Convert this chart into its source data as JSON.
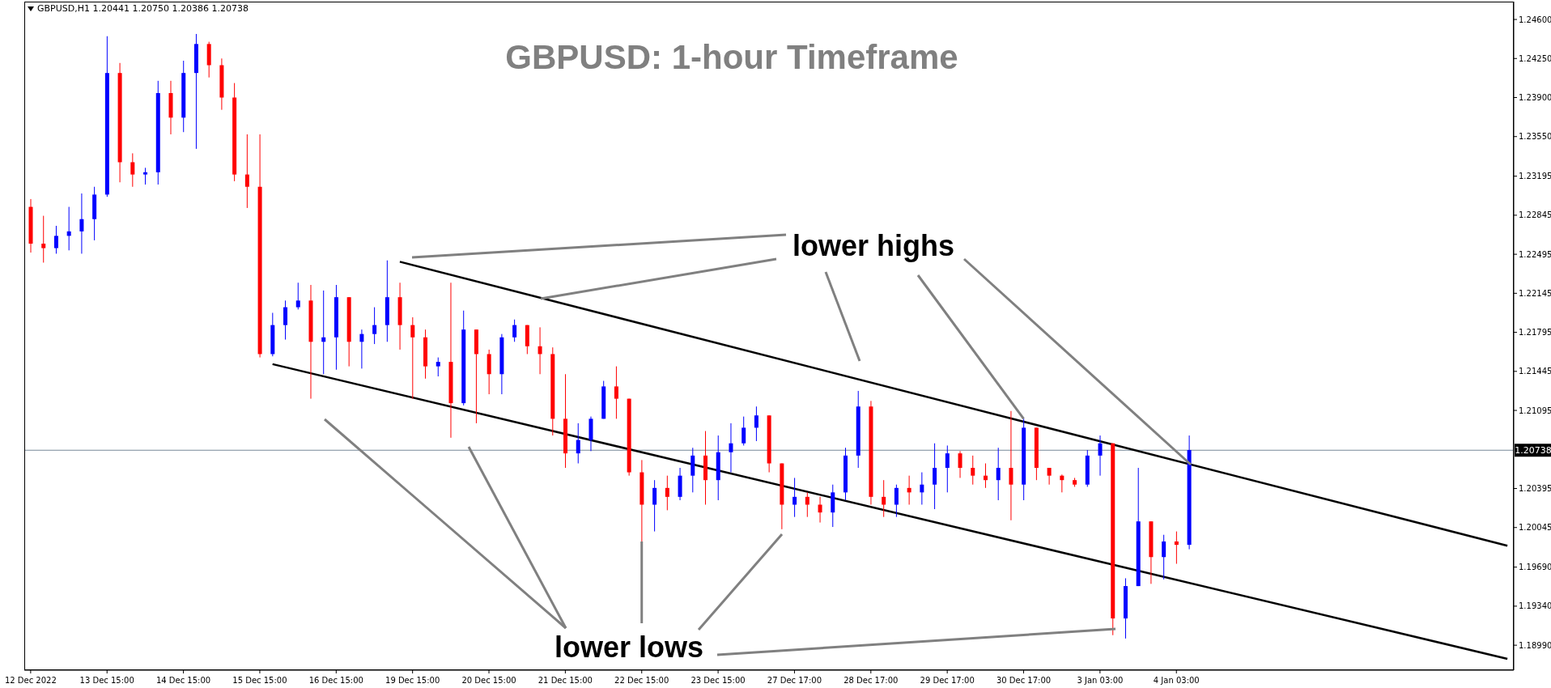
{
  "chart_data": {
    "type": "candlestick",
    "title": "GBPUSD: 1-hour Timeframe",
    "subtitle": "GBPUSD,H1  1.20441 1.20750 1.20386 1.20738",
    "categories": [
      "12 Dec 2022",
      null,
      null,
      null,
      null,
      null,
      "13 Dec 15:00",
      null,
      null,
      null,
      null,
      null,
      "14 Dec 15:00",
      null,
      null,
      null,
      null,
      null,
      "15 Dec 15:00",
      null,
      null,
      null,
      null,
      null,
      "16 Dec 15:00",
      null,
      null,
      null,
      null,
      null,
      "19 Dec 15:00",
      null,
      null,
      null,
      null,
      null,
      "20 Dec 15:00",
      null,
      null,
      null,
      null,
      null,
      "21 Dec 15:00",
      null,
      null,
      null,
      null,
      null,
      "22 Dec 15:00",
      null,
      null,
      null,
      null,
      null,
      "23 Dec 15:00",
      null,
      null,
      null,
      null,
      null,
      "27 Dec 17:00",
      null,
      null,
      null,
      null,
      null,
      "28 Dec 17:00",
      null,
      null,
      null,
      null,
      null,
      "29 Dec 17:00",
      null,
      null,
      null,
      null,
      null,
      "30 Dec 17:00",
      null,
      null,
      null,
      null,
      null,
      "3 Jan 03:00",
      null,
      null,
      null,
      null,
      null,
      "4 Jan 03:00",
      null,
      null,
      null,
      null,
      null,
      null,
      null,
      null,
      null,
      null,
      null,
      null,
      null,
      null,
      null,
      null,
      null,
      null,
      null,
      null,
      null,
      null,
      null,
      null,
      null,
      null
    ],
    "ohlc": [
      [
        1.2292,
        1.2299,
        1.2251,
        1.2259
      ],
      [
        1.2259,
        1.2284,
        1.2242,
        1.2255
      ],
      [
        1.2255,
        1.2275,
        1.225,
        1.2266
      ],
      [
        1.2266,
        1.2292,
        1.2253,
        1.227
      ],
      [
        1.227,
        1.2304,
        1.225,
        1.2281
      ],
      [
        1.2281,
        1.231,
        1.2262,
        1.2303
      ],
      [
        1.2303,
        1.2445,
        1.2301,
        1.2412
      ],
      [
        1.2412,
        1.2421,
        1.2314,
        1.2332
      ],
      [
        1.2332,
        1.234,
        1.231,
        1.2321
      ],
      [
        1.2321,
        1.2327,
        1.2312,
        1.2323
      ],
      [
        1.2323,
        1.2405,
        1.2312,
        1.2394
      ],
      [
        1.2394,
        1.2405,
        1.2357,
        1.2372
      ],
      [
        1.2372,
        1.2423,
        1.2359,
        1.2412
      ],
      [
        1.2412,
        1.2447,
        1.2344,
        1.2438
      ],
      [
        1.2438,
        1.244,
        1.2408,
        1.2419
      ],
      [
        1.2419,
        1.2425,
        1.2379,
        1.239
      ],
      [
        1.239,
        1.2403,
        1.2315,
        1.2321
      ],
      [
        1.2321,
        1.2357,
        1.2291,
        1.231
      ],
      [
        1.231,
        1.2357,
        1.2157,
        1.216
      ],
      [
        1.216,
        1.2197,
        1.2158,
        1.2186
      ],
      [
        1.2186,
        1.2208,
        1.2173,
        1.2202
      ],
      [
        1.2202,
        1.2224,
        1.22,
        1.2208
      ],
      [
        1.2208,
        1.2222,
        1.212,
        1.2171
      ],
      [
        1.2171,
        1.2217,
        1.2142,
        1.2175
      ],
      [
        1.2175,
        1.2222,
        1.2146,
        1.2211
      ],
      [
        1.2211,
        1.2211,
        1.2149,
        1.2171
      ],
      [
        1.2171,
        1.2182,
        1.2147,
        1.2178
      ],
      [
        1.2178,
        1.2202,
        1.2169,
        1.2186
      ],
      [
        1.2186,
        1.2244,
        1.2171,
        1.2211
      ],
      [
        1.2211,
        1.2224,
        1.2164,
        1.2186
      ],
      [
        1.2186,
        1.2193,
        1.212,
        1.2175
      ],
      [
        1.2175,
        1.2182,
        1.2138,
        1.2149
      ],
      [
        1.2149,
        1.2157,
        1.214,
        1.2153
      ],
      [
        1.2153,
        1.2224,
        1.2085,
        1.2116
      ],
      [
        1.2116,
        1.2199,
        1.2114,
        1.2182
      ],
      [
        1.2182,
        1.2182,
        1.2098,
        1.216
      ],
      [
        1.216,
        1.2164,
        1.2124,
        1.2142
      ],
      [
        1.2142,
        1.2178,
        1.2124,
        1.2175
      ],
      [
        1.2175,
        1.2191,
        1.2171,
        1.2186
      ],
      [
        1.2186,
        1.2186,
        1.216,
        1.2167
      ],
      [
        1.2167,
        1.2184,
        1.2142,
        1.216
      ],
      [
        1.216,
        1.2166,
        1.2087,
        1.2102
      ],
      [
        1.2102,
        1.2142,
        1.2058,
        1.2071
      ],
      [
        1.2071,
        1.2098,
        1.2062,
        1.2083
      ],
      [
        1.2083,
        1.2104,
        1.2073,
        1.2102
      ],
      [
        1.2102,
        1.2136,
        1.2102,
        1.2131
      ],
      [
        1.2131,
        1.2149,
        1.2102,
        1.212
      ],
      [
        1.212,
        1.212,
        1.2051,
        1.2054
      ],
      [
        1.2054,
        1.2065,
        1.1992,
        1.2025
      ],
      [
        1.2025,
        1.2047,
        1.2001,
        1.204
      ],
      [
        1.204,
        1.2051,
        1.202,
        1.2032
      ],
      [
        1.2032,
        1.2058,
        1.2029,
        1.2051
      ],
      [
        1.2051,
        1.2076,
        1.2036,
        1.2069
      ],
      [
        1.2069,
        1.2091,
        1.2025,
        1.2047
      ],
      [
        1.2047,
        1.2087,
        1.2029,
        1.2072
      ],
      [
        1.2072,
        1.2098,
        1.2054,
        1.208
      ],
      [
        1.208,
        1.2104,
        1.2078,
        1.2094
      ],
      [
        1.2094,
        1.2113,
        1.2082,
        1.2105
      ],
      [
        1.2105,
        1.2105,
        1.2054,
        1.2062
      ],
      [
        1.2062,
        1.2062,
        1.2003,
        1.2025
      ],
      [
        1.2025,
        1.2049,
        1.2014,
        1.2032
      ],
      [
        1.2032,
        1.2036,
        1.2014,
        1.2025
      ],
      [
        1.2025,
        1.2032,
        1.2009,
        1.2018
      ],
      [
        1.2018,
        1.2043,
        1.2005,
        1.2036
      ],
      [
        1.2036,
        1.2076,
        1.2029,
        1.2069
      ],
      [
        1.2069,
        1.2127,
        1.2058,
        1.2113
      ],
      [
        1.2113,
        1.2118,
        1.2025,
        1.2032
      ],
      [
        1.2032,
        1.2047,
        1.2014,
        1.2025
      ],
      [
        1.2025,
        1.2043,
        1.2014,
        1.204
      ],
      [
        1.204,
        1.2051,
        1.2025,
        1.2036
      ],
      [
        1.2036,
        1.2054,
        1.2025,
        1.2043
      ],
      [
        1.2043,
        1.208,
        1.2021,
        1.2058
      ],
      [
        1.2058,
        1.2078,
        1.2036,
        1.2071
      ],
      [
        1.2071,
        1.2073,
        1.2049,
        1.2058
      ],
      [
        1.2058,
        1.2069,
        1.2043,
        1.2051
      ],
      [
        1.2051,
        1.2062,
        1.204,
        1.2047
      ],
      [
        1.2047,
        1.2076,
        1.2029,
        1.2058
      ],
      [
        1.2058,
        1.2109,
        1.2011,
        1.2043
      ],
      [
        1.2043,
        1.2102,
        1.2029,
        1.2094
      ],
      [
        1.2094,
        1.2094,
        1.2047,
        1.2058
      ],
      [
        1.2058,
        1.2058,
        1.2043,
        1.2051
      ],
      [
        1.2051,
        1.2052,
        1.2036,
        1.2047
      ],
      [
        1.2047,
        1.2049,
        1.2041,
        1.2043
      ],
      [
        1.2043,
        1.2074,
        1.2041,
        1.2069
      ],
      [
        1.2069,
        1.2087,
        1.2051,
        1.208
      ],
      [
        1.208,
        1.208,
        1.1908,
        1.1923
      ],
      [
        1.1923,
        1.1959,
        1.1905,
        1.1952
      ],
      [
        1.1952,
        1.2058,
        1.1952,
        1.201
      ],
      [
        1.201,
        1.201,
        1.1954,
        1.1978
      ],
      [
        1.1978,
        1.1998,
        1.1958,
        1.1992
      ],
      [
        1.1992,
        1.2001,
        1.1972,
        1.1989
      ],
      [
        1.1989,
        1.2087,
        1.1985,
        1.2074
      ],
      null,
      null,
      null,
      null,
      null,
      null,
      null,
      null,
      null,
      null,
      null,
      null,
      null,
      null,
      null,
      null,
      null,
      null,
      null,
      null,
      null,
      null,
      null,
      null,
      null
    ],
    "colors": [
      "#ff0000",
      "#ff0000",
      "#0000ff",
      "#0000ff",
      "#0000ff",
      "#0000ff",
      "#0000ff",
      "#ff0000",
      "#ff0000",
      "#0000ff",
      "#0000ff",
      "#ff0000",
      "#0000ff",
      "#0000ff",
      "#ff0000",
      "#ff0000",
      "#ff0000",
      "#ff0000",
      "#ff0000",
      "#0000ff",
      "#0000ff",
      "#0000ff",
      "#ff0000",
      "#0000ff",
      "#0000ff",
      "#ff0000",
      "#0000ff",
      "#0000ff",
      "#0000ff",
      "#ff0000",
      "#ff0000",
      "#ff0000",
      "#0000ff",
      "#ff0000",
      "#0000ff",
      "#ff0000",
      "#ff0000",
      "#0000ff",
      "#0000ff",
      "#ff0000",
      "#ff0000",
      "#ff0000",
      "#ff0000",
      "#0000ff",
      "#0000ff",
      "#0000ff",
      "#ff0000",
      "#ff0000",
      "#ff0000",
      "#0000ff",
      "#ff0000",
      "#0000ff",
      "#0000ff",
      "#ff0000",
      "#0000ff",
      "#0000ff",
      "#0000ff",
      "#0000ff",
      "#ff0000",
      "#ff0000",
      "#0000ff",
      "#ff0000",
      "#ff0000",
      "#0000ff",
      "#0000ff",
      "#0000ff",
      "#ff0000",
      "#ff0000",
      "#0000ff",
      "#ff0000",
      "#0000ff",
      "#0000ff",
      "#0000ff",
      "#ff0000",
      "#ff0000",
      "#ff0000",
      "#0000ff",
      "#ff0000",
      "#0000ff",
      "#ff0000",
      "#ff0000",
      "#ff0000",
      "#ff0000",
      "#0000ff",
      "#0000ff",
      "#ff0000",
      "#0000ff",
      "#0000ff",
      "#ff0000",
      "#0000ff",
      "#ff0000",
      "#0000ff",
      null,
      null,
      null,
      null,
      null,
      null,
      null,
      null,
      null,
      null,
      null,
      null,
      null,
      null,
      null,
      null,
      null,
      null,
      null,
      null,
      null,
      null,
      null,
      null,
      null
    ],
    "ylim": [
      1.18766,
      1.2476
    ],
    "yticks": [
      {
        "value": 1.246,
        "label": "1.24600"
      },
      {
        "value": 1.2425,
        "label": "1.24250"
      },
      {
        "value": 1.239,
        "label": "1.23900"
      },
      {
        "value": 1.2355,
        "label": "1.23550"
      },
      {
        "value": 1.23195,
        "label": "1.23195"
      },
      {
        "value": 1.22845,
        "label": "1.22845"
      },
      {
        "value": 1.22495,
        "label": "1.22495"
      },
      {
        "value": 1.22145,
        "label": "1.22145"
      },
      {
        "value": 1.21795,
        "label": "1.21795"
      },
      {
        "value": 1.21445,
        "label": "1.21445"
      },
      {
        "value": 1.21095,
        "label": "1.21095"
      },
      {
        "value": 1.20395,
        "label": "1.20395"
      },
      {
        "value": 1.20045,
        "label": "1.20045"
      },
      {
        "value": 1.1969,
        "label": "1.19690"
      },
      {
        "value": 1.1934,
        "label": "1.19340"
      },
      {
        "value": 1.1899,
        "label": "1.18990"
      }
    ],
    "ref_lines": [
      {
        "axis": "y",
        "value": 1.20738,
        "label": "1.20738",
        "color": "#778899"
      }
    ],
    "annotations": [
      {
        "text": "lower highs",
        "x": "30 Dec 17:00",
        "y": 1.2102
      },
      {
        "text": "lower lows",
        "x": "22 Dec 15:00",
        "y": 1.1992
      }
    ],
    "series": [
      {
        "type": "line",
        "color": "#000000",
        "values": [
          null,
          null,
          null,
          null,
          null,
          null,
          null,
          null,
          null,
          null,
          null,
          null,
          null,
          null,
          null,
          null,
          null,
          null,
          null,
          null,
          null,
          null,
          null,
          null,
          null,
          null,
          null,
          null,
          null,
          1.22428,
          null,
          null,
          null,
          null,
          null,
          null,
          null,
          null,
          null,
          null,
          null,
          null,
          null,
          null,
          null,
          null,
          null,
          null,
          null,
          null,
          null,
          null,
          null,
          null,
          null,
          null,
          null,
          null,
          null,
          null,
          null,
          null,
          null,
          null,
          null,
          null,
          null,
          null,
          null,
          null,
          null,
          null,
          null,
          null,
          null,
          null,
          null,
          null,
          null,
          null,
          null,
          null,
          null,
          null,
          null,
          null,
          null,
          null,
          null,
          null,
          null,
          null,
          null,
          null,
          null,
          null,
          null,
          null,
          null,
          null,
          null,
          null,
          null,
          null,
          null,
          null,
          null,
          null,
          null,
          null,
          null,
          null,
          null,
          null,
          null,
          null,
          1.19882
        ]
      },
      {
        "type": "line",
        "color": "#000000",
        "values": [
          null,
          null,
          null,
          null,
          null,
          null,
          null,
          null,
          null,
          null,
          null,
          null,
          null,
          null,
          null,
          null,
          null,
          null,
          null,
          1.2151,
          null,
          null,
          null,
          null,
          null,
          null,
          null,
          null,
          null,
          null,
          null,
          null,
          null,
          null,
          null,
          null,
          null,
          null,
          null,
          null,
          null,
          null,
          null,
          null,
          null,
          null,
          null,
          null,
          null,
          null,
          null,
          null,
          null,
          null,
          null,
          null,
          null,
          null,
          null,
          null,
          null,
          null,
          null,
          null,
          null,
          null,
          null,
          null,
          null,
          null,
          null,
          null,
          null,
          null,
          null,
          null,
          null,
          null,
          null,
          null,
          null,
          null,
          null,
          null,
          null,
          null,
          null,
          null,
          null,
          null,
          null,
          null,
          null,
          null,
          null,
          null,
          null,
          null,
          null,
          null,
          null,
          null,
          null,
          null,
          null,
          null,
          null,
          null,
          null,
          null,
          null,
          null,
          null,
          null,
          null,
          null,
          1.18868
        ]
      }
    ]
  }
}
